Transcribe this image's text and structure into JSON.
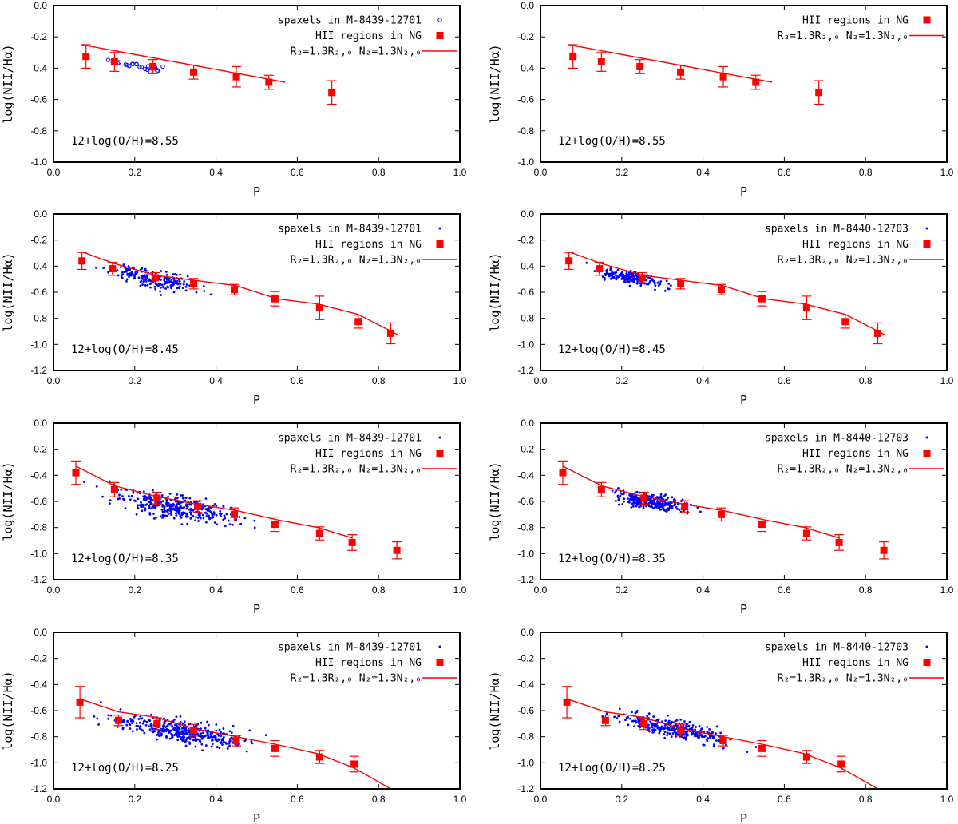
{
  "figure": {
    "rows": 4,
    "cols": 2,
    "colors": {
      "hii": "#ff0000",
      "spaxels": "#0000ff",
      "model": "#ff0000",
      "axes": "#000000"
    }
  },
  "chart_data": [
    {
      "type": "scatter",
      "panel": "row1-left",
      "xlabel": "P",
      "ylabel": "log(NII/Hα)",
      "xlim": [
        0,
        1
      ],
      "ylim": [
        -1.0,
        0.0
      ],
      "xticks": [
        "0.0",
        "0.2",
        "0.4",
        "0.6",
        "0.8",
        "1.0"
      ],
      "yticks": [
        "-1.0",
        "-0.8",
        "-0.6",
        "-0.4",
        "-0.2",
        "0.0"
      ],
      "annotation": "12+log(O/H)=8.55",
      "spaxel_style": "open-circle",
      "legend": [
        {
          "label": "spaxels in M-8439-12701",
          "kind": "spaxel"
        },
        {
          "label": "HII regions in NG",
          "kind": "hii"
        },
        {
          "label": "R₂=1.3R₂,₀  N₂=1.3N₂,₀",
          "kind": "model"
        }
      ],
      "hii": [
        {
          "x": 0.08,
          "y": -0.325,
          "err": 0.075
        },
        {
          "x": 0.15,
          "y": -0.36,
          "err": 0.06
        },
        {
          "x": 0.245,
          "y": -0.39,
          "err": 0.045
        },
        {
          "x": 0.345,
          "y": -0.425,
          "err": 0.045
        },
        {
          "x": 0.45,
          "y": -0.455,
          "err": 0.065
        },
        {
          "x": 0.53,
          "y": -0.49,
          "err": 0.045
        },
        {
          "x": 0.685,
          "y": -0.555,
          "err": 0.075
        }
      ],
      "model": [
        [
          0.07,
          -0.25
        ],
        [
          0.57,
          -0.49
        ]
      ],
      "spaxels": {
        "x_center": 0.21,
        "x_spread": 0.05,
        "slope": -0.4,
        "y_at_center": -0.385,
        "scatter": 0.012,
        "count": 22
      }
    },
    {
      "type": "scatter",
      "panel": "row1-right",
      "xlabel": "P",
      "ylabel": "log(NII/Hα)",
      "xlim": [
        0,
        1
      ],
      "ylim": [
        -1.0,
        0.0
      ],
      "xticks": [
        "0.0",
        "0.2",
        "0.4",
        "0.6",
        "0.8",
        "1.0"
      ],
      "yticks": [
        "-1.0",
        "-0.8",
        "-0.6",
        "-0.4",
        "-0.2",
        "0.0"
      ],
      "annotation": "12+log(O/H)=8.55",
      "legend": [
        {
          "label": "HII regions in NG",
          "kind": "hii"
        },
        {
          "label": "R₂=1.3R₂,₀  N₂=1.3N₂,₀",
          "kind": "model"
        }
      ],
      "hii": [
        {
          "x": 0.08,
          "y": -0.325,
          "err": 0.075
        },
        {
          "x": 0.15,
          "y": -0.36,
          "err": 0.06
        },
        {
          "x": 0.245,
          "y": -0.39,
          "err": 0.045
        },
        {
          "x": 0.345,
          "y": -0.425,
          "err": 0.045
        },
        {
          "x": 0.45,
          "y": -0.455,
          "err": 0.065
        },
        {
          "x": 0.53,
          "y": -0.49,
          "err": 0.045
        },
        {
          "x": 0.685,
          "y": -0.555,
          "err": 0.075
        }
      ],
      "model": [
        [
          0.07,
          -0.25
        ],
        [
          0.57,
          -0.49
        ]
      ],
      "spaxels": null
    },
    {
      "type": "scatter",
      "panel": "row2-left",
      "xlabel": "P",
      "ylabel": "log(NII/Hα)",
      "xlim": [
        0,
        1
      ],
      "ylim": [
        -1.2,
        0.0
      ],
      "xticks": [
        "0.0",
        "0.2",
        "0.4",
        "0.6",
        "0.8",
        "1.0"
      ],
      "yticks": [
        "-1.2",
        "-1.0",
        "-0.8",
        "-0.6",
        "-0.4",
        "-0.2",
        "0.0"
      ],
      "annotation": "12+log(O/H)=8.45",
      "spaxel_style": "dot",
      "legend": [
        {
          "label": "spaxels in M-8439-12701",
          "kind": "spaxel"
        },
        {
          "label": "HII regions in NG",
          "kind": "hii"
        },
        {
          "label": "R₂=1.3R₂,₀  N₂=1.3N₂,₀",
          "kind": "model"
        }
      ],
      "hii": [
        {
          "x": 0.07,
          "y": -0.36,
          "err": 0.065
        },
        {
          "x": 0.145,
          "y": -0.42,
          "err": 0.05
        },
        {
          "x": 0.25,
          "y": -0.49,
          "err": 0.04
        },
        {
          "x": 0.345,
          "y": -0.535,
          "err": 0.04
        },
        {
          "x": 0.445,
          "y": -0.58,
          "err": 0.04
        },
        {
          "x": 0.545,
          "y": -0.65,
          "err": 0.055
        },
        {
          "x": 0.655,
          "y": -0.72,
          "err": 0.09
        },
        {
          "x": 0.75,
          "y": -0.825,
          "err": 0.05
        },
        {
          "x": 0.83,
          "y": -0.915,
          "err": 0.08
        }
      ],
      "model": [
        [
          0.07,
          -0.29
        ],
        [
          0.15,
          -0.38
        ],
        [
          0.25,
          -0.47
        ],
        [
          0.35,
          -0.51
        ],
        [
          0.45,
          -0.55
        ],
        [
          0.55,
          -0.65
        ],
        [
          0.65,
          -0.69
        ],
        [
          0.75,
          -0.77
        ],
        [
          0.85,
          -0.93
        ]
      ],
      "spaxels": {
        "x_center": 0.25,
        "x_spread": 0.09,
        "slope": -0.6,
        "y_at_center": -0.5,
        "scatter": 0.035,
        "count": 200
      }
    },
    {
      "type": "scatter",
      "panel": "row2-right",
      "xlabel": "P",
      "ylabel": "log(NII/Hα)",
      "xlim": [
        0,
        1
      ],
      "ylim": [
        -1.2,
        0.0
      ],
      "xticks": [
        "0.0",
        "0.2",
        "0.4",
        "0.6",
        "0.8",
        "1.0"
      ],
      "yticks": [
        "-1.2",
        "-1.0",
        "-0.8",
        "-0.6",
        "-0.4",
        "-0.2",
        "0.0"
      ],
      "annotation": "12+log(O/H)=8.45",
      "spaxel_style": "dot",
      "legend": [
        {
          "label": "spaxels in M-8440-12703",
          "kind": "spaxel"
        },
        {
          "label": "HII regions in NG",
          "kind": "hii"
        },
        {
          "label": "R₂=1.3R₂,₀  N₂=1.3N₂,₀",
          "kind": "model"
        }
      ],
      "hii": [
        {
          "x": 0.07,
          "y": -0.36,
          "err": 0.065
        },
        {
          "x": 0.145,
          "y": -0.42,
          "err": 0.05
        },
        {
          "x": 0.25,
          "y": -0.49,
          "err": 0.04
        },
        {
          "x": 0.345,
          "y": -0.535,
          "err": 0.04
        },
        {
          "x": 0.445,
          "y": -0.58,
          "err": 0.04
        },
        {
          "x": 0.545,
          "y": -0.65,
          "err": 0.055
        },
        {
          "x": 0.655,
          "y": -0.72,
          "err": 0.09
        },
        {
          "x": 0.75,
          "y": -0.825,
          "err": 0.05
        },
        {
          "x": 0.83,
          "y": -0.915,
          "err": 0.08
        }
      ],
      "model": [
        [
          0.07,
          -0.29
        ],
        [
          0.15,
          -0.38
        ],
        [
          0.25,
          -0.47
        ],
        [
          0.35,
          -0.51
        ],
        [
          0.45,
          -0.55
        ],
        [
          0.55,
          -0.65
        ],
        [
          0.65,
          -0.69
        ],
        [
          0.75,
          -0.77
        ],
        [
          0.85,
          -0.93
        ]
      ],
      "spaxels": {
        "x_center": 0.225,
        "x_spread": 0.065,
        "slope": -0.55,
        "y_at_center": -0.49,
        "scatter": 0.025,
        "count": 200
      }
    },
    {
      "type": "scatter",
      "panel": "row3-left",
      "xlabel": "P",
      "ylabel": "log(NII/Hα)",
      "xlim": [
        0,
        1
      ],
      "ylim": [
        -1.2,
        0.0
      ],
      "xticks": [
        "0.0",
        "0.2",
        "0.4",
        "0.6",
        "0.8",
        "1.0"
      ],
      "yticks": [
        "-1.2",
        "-1.0",
        "-0.8",
        "-0.6",
        "-0.4",
        "-0.2",
        "0.0"
      ],
      "annotation": "12+log(O/H)=8.35",
      "spaxel_style": "dot",
      "legend": [
        {
          "label": "spaxels in M-8439-12701",
          "kind": "spaxel"
        },
        {
          "label": "HII regions in NG",
          "kind": "hii"
        },
        {
          "label": "R₂=1.3R₂,₀  N₂=1.3N₂,₀",
          "kind": "model"
        }
      ],
      "hii": [
        {
          "x": 0.055,
          "y": -0.38,
          "err": 0.09
        },
        {
          "x": 0.15,
          "y": -0.51,
          "err": 0.055
        },
        {
          "x": 0.255,
          "y": -0.575,
          "err": 0.045
        },
        {
          "x": 0.355,
          "y": -0.64,
          "err": 0.045
        },
        {
          "x": 0.445,
          "y": -0.7,
          "err": 0.05
        },
        {
          "x": 0.545,
          "y": -0.775,
          "err": 0.055
        },
        {
          "x": 0.655,
          "y": -0.845,
          "err": 0.05
        },
        {
          "x": 0.735,
          "y": -0.915,
          "err": 0.06
        },
        {
          "x": 0.845,
          "y": -0.975,
          "err": 0.065
        }
      ],
      "model": [
        [
          0.055,
          -0.33
        ],
        [
          0.15,
          -0.48
        ],
        [
          0.25,
          -0.56
        ],
        [
          0.35,
          -0.62
        ],
        [
          0.45,
          -0.67
        ],
        [
          0.55,
          -0.74
        ],
        [
          0.65,
          -0.8
        ],
        [
          0.735,
          -0.88
        ]
      ],
      "spaxels": {
        "x_center": 0.3,
        "x_spread": 0.12,
        "slope": -0.55,
        "y_at_center": -0.64,
        "scatter": 0.045,
        "count": 360
      }
    },
    {
      "type": "scatter",
      "panel": "row3-right",
      "xlabel": "P",
      "ylabel": "log(NII/Hα)",
      "xlim": [
        0,
        1
      ],
      "ylim": [
        -1.2,
        0.0
      ],
      "xticks": [
        "0.0",
        "0.2",
        "0.4",
        "0.6",
        "0.8",
        "1.0"
      ],
      "yticks": [
        "-1.2",
        "-1.0",
        "-0.8",
        "-0.6",
        "-0.4",
        "-0.2",
        "0.0"
      ],
      "annotation": "12+log(O/H)=8.35",
      "spaxel_style": "dot",
      "legend": [
        {
          "label": "spaxels in M-8440-12703",
          "kind": "spaxel"
        },
        {
          "label": "HII regions in NG",
          "kind": "hii"
        },
        {
          "label": "R₂=1.3R₂,₀  N₂=1.3N₂,₀",
          "kind": "model"
        }
      ],
      "hii": [
        {
          "x": 0.055,
          "y": -0.38,
          "err": 0.09
        },
        {
          "x": 0.15,
          "y": -0.51,
          "err": 0.055
        },
        {
          "x": 0.255,
          "y": -0.575,
          "err": 0.045
        },
        {
          "x": 0.355,
          "y": -0.64,
          "err": 0.045
        },
        {
          "x": 0.445,
          "y": -0.7,
          "err": 0.05
        },
        {
          "x": 0.545,
          "y": -0.775,
          "err": 0.055
        },
        {
          "x": 0.655,
          "y": -0.845,
          "err": 0.05
        },
        {
          "x": 0.735,
          "y": -0.915,
          "err": 0.06
        },
        {
          "x": 0.845,
          "y": -0.975,
          "err": 0.065
        }
      ],
      "model": [
        [
          0.055,
          -0.33
        ],
        [
          0.15,
          -0.48
        ],
        [
          0.25,
          -0.56
        ],
        [
          0.35,
          -0.62
        ],
        [
          0.45,
          -0.67
        ],
        [
          0.55,
          -0.74
        ],
        [
          0.65,
          -0.8
        ],
        [
          0.735,
          -0.88
        ]
      ],
      "spaxels": {
        "x_center": 0.27,
        "x_spread": 0.065,
        "slope": -0.5,
        "y_at_center": -0.6,
        "scatter": 0.03,
        "count": 320
      }
    },
    {
      "type": "scatter",
      "panel": "row4-left",
      "xlabel": "P",
      "ylabel": "log(NII/Hα)",
      "xlim": [
        0,
        1
      ],
      "ylim": [
        -1.2,
        0.0
      ],
      "xticks": [
        "0.0",
        "0.2",
        "0.4",
        "0.6",
        "0.8",
        "1.0"
      ],
      "yticks": [
        "-1.2",
        "-1.0",
        "-0.8",
        "-0.6",
        "-0.4",
        "-0.2",
        "0.0"
      ],
      "annotation": "12+log(O/H)=8.25",
      "spaxel_style": "dot",
      "legend": [
        {
          "label": "spaxels in M-8439-12701",
          "kind": "spaxel"
        },
        {
          "label": "HII regions in NG",
          "kind": "hii"
        },
        {
          "label": "R₂=1.3R₂,₀  N₂=1.3N₂,₀",
          "kind": "model"
        }
      ],
      "hii": [
        {
          "x": 0.065,
          "y": -0.535,
          "err": 0.12
        },
        {
          "x": 0.16,
          "y": -0.675,
          "err": 0.04
        },
        {
          "x": 0.255,
          "y": -0.7,
          "err": 0.045
        },
        {
          "x": 0.345,
          "y": -0.75,
          "err": 0.045
        },
        {
          "x": 0.45,
          "y": -0.83,
          "err": 0.04
        },
        {
          "x": 0.545,
          "y": -0.89,
          "err": 0.06
        },
        {
          "x": 0.655,
          "y": -0.955,
          "err": 0.05
        },
        {
          "x": 0.74,
          "y": -1.01,
          "err": 0.06
        }
      ],
      "model": [
        [
          0.065,
          -0.51
        ],
        [
          0.16,
          -0.61
        ],
        [
          0.25,
          -0.65
        ],
        [
          0.35,
          -0.74
        ],
        [
          0.45,
          -0.8
        ],
        [
          0.55,
          -0.86
        ],
        [
          0.65,
          -0.93
        ],
        [
          0.74,
          -1.04
        ],
        [
          0.83,
          -1.2
        ]
      ],
      "spaxels": {
        "x_center": 0.32,
        "x_spread": 0.13,
        "slope": -0.5,
        "y_at_center": -0.76,
        "scatter": 0.04,
        "count": 400
      }
    },
    {
      "type": "scatter",
      "panel": "row4-right",
      "xlabel": "P",
      "ylabel": "log(NII/Hα)",
      "xlim": [
        0,
        1
      ],
      "ylim": [
        -1.2,
        0.0
      ],
      "xticks": [
        "0.0",
        "0.2",
        "0.4",
        "0.6",
        "0.8",
        "1.0"
      ],
      "yticks": [
        "-1.2",
        "-1.0",
        "-0.8",
        "-0.6",
        "-0.4",
        "-0.2",
        "0.0"
      ],
      "annotation": "12+log(O/H)=8.25",
      "spaxel_style": "dot",
      "legend": [
        {
          "label": "spaxels in M-8440-12703",
          "kind": "spaxel"
        },
        {
          "label": "HII regions in NG",
          "kind": "hii"
        },
        {
          "label": "R₂=1.3R₂,₀  N₂=1.3N₂,₀",
          "kind": "model"
        }
      ],
      "hii": [
        {
          "x": 0.065,
          "y": -0.535,
          "err": 0.12
        },
        {
          "x": 0.16,
          "y": -0.675,
          "err": 0.04
        },
        {
          "x": 0.255,
          "y": -0.7,
          "err": 0.045
        },
        {
          "x": 0.345,
          "y": -0.75,
          "err": 0.045
        },
        {
          "x": 0.45,
          "y": -0.83,
          "err": 0.04
        },
        {
          "x": 0.545,
          "y": -0.89,
          "err": 0.06
        },
        {
          "x": 0.655,
          "y": -0.955,
          "err": 0.05
        },
        {
          "x": 0.74,
          "y": -1.01,
          "err": 0.06
        }
      ],
      "model": [
        [
          0.065,
          -0.51
        ],
        [
          0.16,
          -0.61
        ],
        [
          0.25,
          -0.65
        ],
        [
          0.35,
          -0.74
        ],
        [
          0.45,
          -0.8
        ],
        [
          0.55,
          -0.86
        ],
        [
          0.65,
          -0.93
        ],
        [
          0.74,
          -1.04
        ],
        [
          0.83,
          -1.2
        ]
      ],
      "spaxels": {
        "x_center": 0.33,
        "x_spread": 0.11,
        "slope": -0.65,
        "y_at_center": -0.74,
        "scatter": 0.035,
        "count": 300
      }
    }
  ]
}
